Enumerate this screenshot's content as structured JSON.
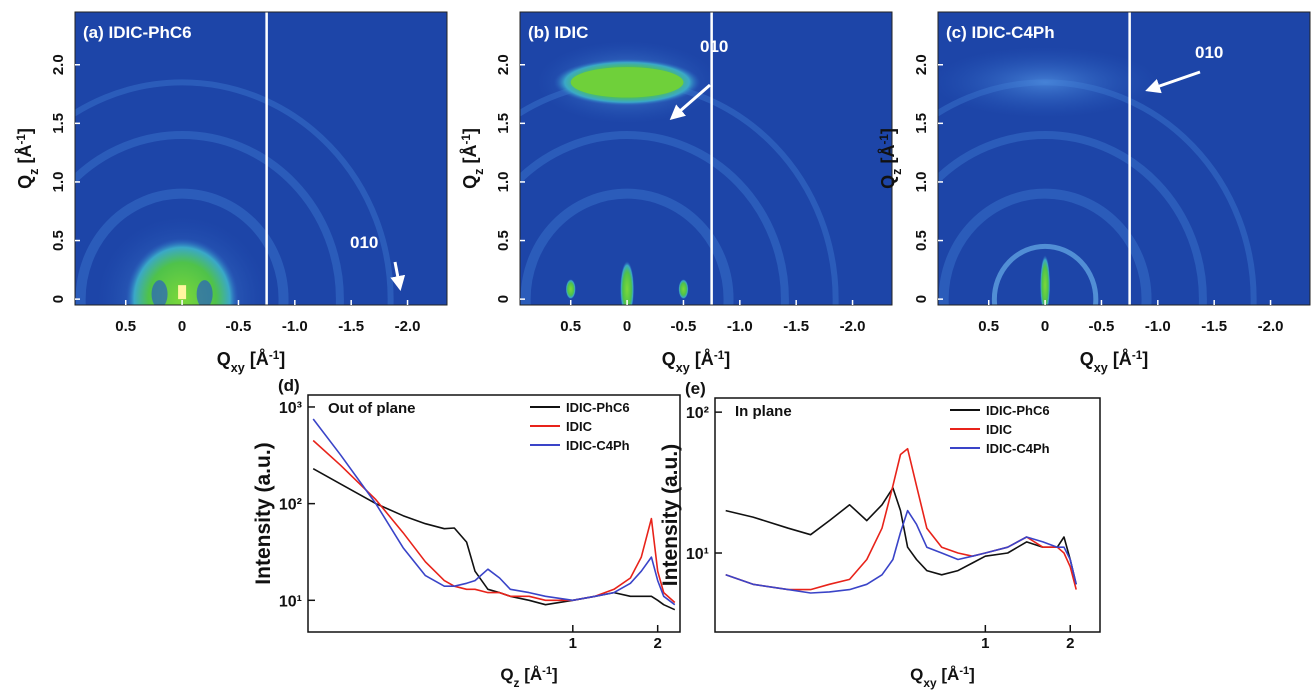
{
  "chart_data": [
    {
      "type": "heatmap",
      "title": "(a) IDIC-PhC6",
      "annotations": [
        "010"
      ],
      "xlabel": [
        "Q",
        "xy",
        " [Å",
        "-1",
        "]"
      ],
      "ylabel": [
        "Q",
        "z",
        " [Å",
        "-1",
        "]"
      ],
      "xlim": [
        0.95,
        -2.35
      ],
      "ylim": [
        -0.05,
        2.45
      ],
      "xticks": [
        0.5,
        0,
        -0.5,
        {
          "value": -1,
          "label": "-1.0"
        },
        -1.5,
        {
          "value": -2,
          "label": "-2.0"
        }
      ],
      "yticks": [
        0,
        0.5,
        {
          "value": 1,
          "label": "1.0"
        },
        1.5,
        {
          "value": 2,
          "label": "2.0"
        }
      ]
    },
    {
      "type": "heatmap",
      "title": "(b) IDIC",
      "annotations": [
        "010"
      ],
      "xlabel": [
        "Q",
        "xy",
        " [Å",
        "-1",
        "]"
      ],
      "ylabel": [
        "Q",
        "z",
        " [Å",
        "-1",
        "]"
      ],
      "xlim": [
        0.95,
        -2.35
      ],
      "ylim": [
        -0.05,
        2.45
      ],
      "xticks": [
        0.5,
        0,
        -0.5,
        {
          "value": -1,
          "label": "-1.0"
        },
        -1.5,
        {
          "value": -2,
          "label": "-2.0"
        }
      ],
      "yticks": [
        0,
        0.5,
        {
          "value": 1,
          "label": "1.0"
        },
        1.5,
        {
          "value": 2,
          "label": "2.0"
        }
      ]
    },
    {
      "type": "heatmap",
      "title": "(c) IDIC-C4Ph",
      "annotations": [
        "010"
      ],
      "xlabel": [
        "Q",
        "xy",
        " [Å",
        "-1",
        "]"
      ],
      "ylabel": [
        "Q",
        "z",
        " [Å",
        "-1",
        "]"
      ],
      "xlim": [
        0.95,
        -2.35
      ],
      "ylim": [
        -0.05,
        2.45
      ],
      "xticks": [
        0.5,
        0,
        -0.5,
        {
          "value": -1,
          "label": "-1.0"
        },
        -1.5,
        {
          "value": -2,
          "label": "-2.0"
        }
      ],
      "yticks": [
        0,
        0.5,
        {
          "value": 1,
          "label": "1.0"
        },
        1.5,
        {
          "value": 2,
          "label": "2.0"
        }
      ]
    },
    {
      "type": "line",
      "panel_label": "(d)",
      "title": "Out of plane",
      "xlabel": [
        "Q",
        "z",
        " [Å",
        "-1",
        "]"
      ],
      "ylabel": "Intensity (a.u.)",
      "xscale": "log",
      "yscale": "log",
      "legend": "upper right",
      "xlim": [
        0.115,
        2.4
      ],
      "ylim": [
        4.7,
        1330
      ],
      "xticks": [
        1,
        2
      ],
      "yticks": [
        {
          "value": 10,
          "label": "10¹"
        },
        {
          "value": 100,
          "label": "10²"
        },
        {
          "value": 1000,
          "label": "10³"
        }
      ],
      "x": [
        0.12,
        0.15,
        0.2,
        0.25,
        0.3,
        0.35,
        0.38,
        0.42,
        0.45,
        0.5,
        0.55,
        0.6,
        0.7,
        0.8,
        1.0,
        1.2,
        1.4,
        1.6,
        1.75,
        1.9,
        2.0,
        2.1,
        2.3
      ],
      "series": [
        {
          "name": "IDIC-PhC6",
          "color": "#111111",
          "values": [
            230,
            160,
            100,
            75,
            62,
            55,
            56,
            40,
            20,
            13,
            12,
            11,
            10,
            9,
            10,
            11,
            12,
            11,
            11,
            11,
            10,
            9,
            8
          ]
        },
        {
          "name": "IDIC",
          "color": "#e8231a",
          "values": [
            450,
            250,
            110,
            50,
            25,
            16,
            14,
            13,
            13,
            12,
            12,
            11,
            11,
            10,
            10,
            11,
            13,
            17,
            28,
            70,
            20,
            12,
            9.5
          ]
        },
        {
          "name": "IDIC-C4Ph",
          "color": "#3a44c8",
          "values": [
            750,
            320,
            100,
            35,
            18,
            14,
            14,
            15,
            16,
            21,
            17,
            13,
            12,
            11,
            10,
            11,
            12,
            15,
            20,
            28,
            16,
            11,
            9
          ]
        }
      ]
    },
    {
      "type": "line",
      "panel_label": "(e)",
      "title": "In plane",
      "xlabel": [
        "Q",
        "xy",
        " [Å",
        "-1",
        "]"
      ],
      "ylabel": "Intensity (a.u.)",
      "xscale": "log",
      "yscale": "log",
      "legend": "upper right",
      "xlim": [
        0.11,
        2.55
      ],
      "ylim": [
        2.75,
        126
      ],
      "xticks": [
        1,
        2
      ],
      "yticks": [
        {
          "value": 10,
          "label": "10¹"
        },
        {
          "value": 100,
          "label": "10²"
        }
      ],
      "x": [
        0.12,
        0.15,
        0.2,
        0.24,
        0.28,
        0.33,
        0.38,
        0.43,
        0.47,
        0.5,
        0.53,
        0.57,
        0.62,
        0.7,
        0.8,
        0.9,
        1.0,
        1.2,
        1.4,
        1.6,
        1.8,
        1.9,
        2.0,
        2.1
      ],
      "series": [
        {
          "name": "IDIC-PhC6",
          "color": "#111111",
          "values": [
            20,
            18,
            15,
            13.5,
            17,
            22,
            17,
            22,
            29,
            20,
            11,
            9,
            7.5,
            7,
            7.5,
            8.5,
            9.5,
            10,
            12,
            11,
            11,
            13,
            9,
            6
          ]
        },
        {
          "name": "IDIC",
          "color": "#e8231a",
          "values": [
            7,
            6,
            5.5,
            5.5,
            6,
            6.5,
            9,
            15,
            30,
            50,
            55,
            30,
            15,
            11,
            10,
            9.5,
            10,
            11,
            13,
            11,
            11,
            10,
            8,
            5.5
          ]
        },
        {
          "name": "IDIC-C4Ph",
          "color": "#3a44c8",
          "values": [
            7,
            6,
            5.5,
            5.2,
            5.3,
            5.5,
            6,
            7,
            9,
            14,
            20,
            16,
            11,
            10,
            9,
            9.5,
            10,
            11,
            13,
            12,
            11,
            11,
            9,
            6
          ]
        }
      ]
    }
  ]
}
